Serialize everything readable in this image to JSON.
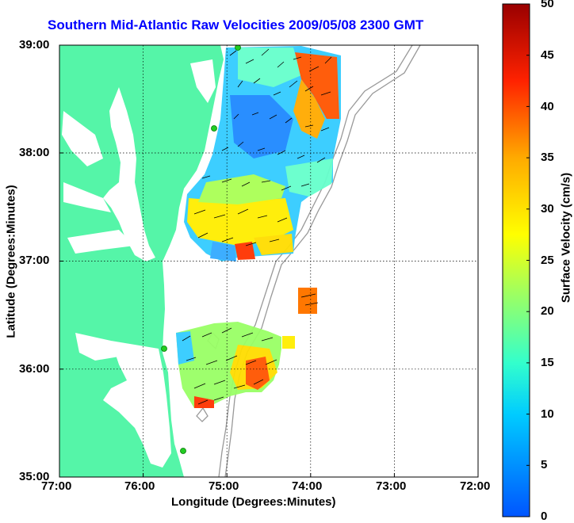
{
  "title": "Southern Mid-Atlantic Raw Velocities 2009/05/08 2300 GMT",
  "xlabel": "Longitude (Degrees:Minutes)",
  "ylabel": "Latitude (Degrees:Minutes)",
  "colorbar_label": "Surface Velocity (cm/s)",
  "x_ticks": [
    "77:00",
    "76:00",
    "75:00",
    "74:00",
    "73:00",
    "72:00"
  ],
  "y_ticks": [
    "39:00",
    "38:00",
    "37:00",
    "36:00",
    "35:00"
  ],
  "colorbar_ticks": [
    "0",
    "5",
    "10",
    "15",
    "20",
    "25",
    "30",
    "35",
    "40",
    "45",
    "50"
  ],
  "colors": {
    "land": "#55f5a8",
    "title": "#0000ff",
    "bathymetry": "#999999",
    "station": "#22cc22"
  },
  "chart_data": {
    "type": "map",
    "title": "Southern Mid-Atlantic Raw Velocities 2009/05/08 2300 GMT",
    "xlabel": "Longitude (Degrees:Minutes)",
    "ylabel": "Latitude (Degrees:Minutes)",
    "xlim": [
      -77.0,
      -72.0
    ],
    "ylim": [
      35.0,
      39.0
    ],
    "colorbar_range": [
      0,
      50
    ],
    "colorbar_units": "cm/s",
    "grid": true
  }
}
